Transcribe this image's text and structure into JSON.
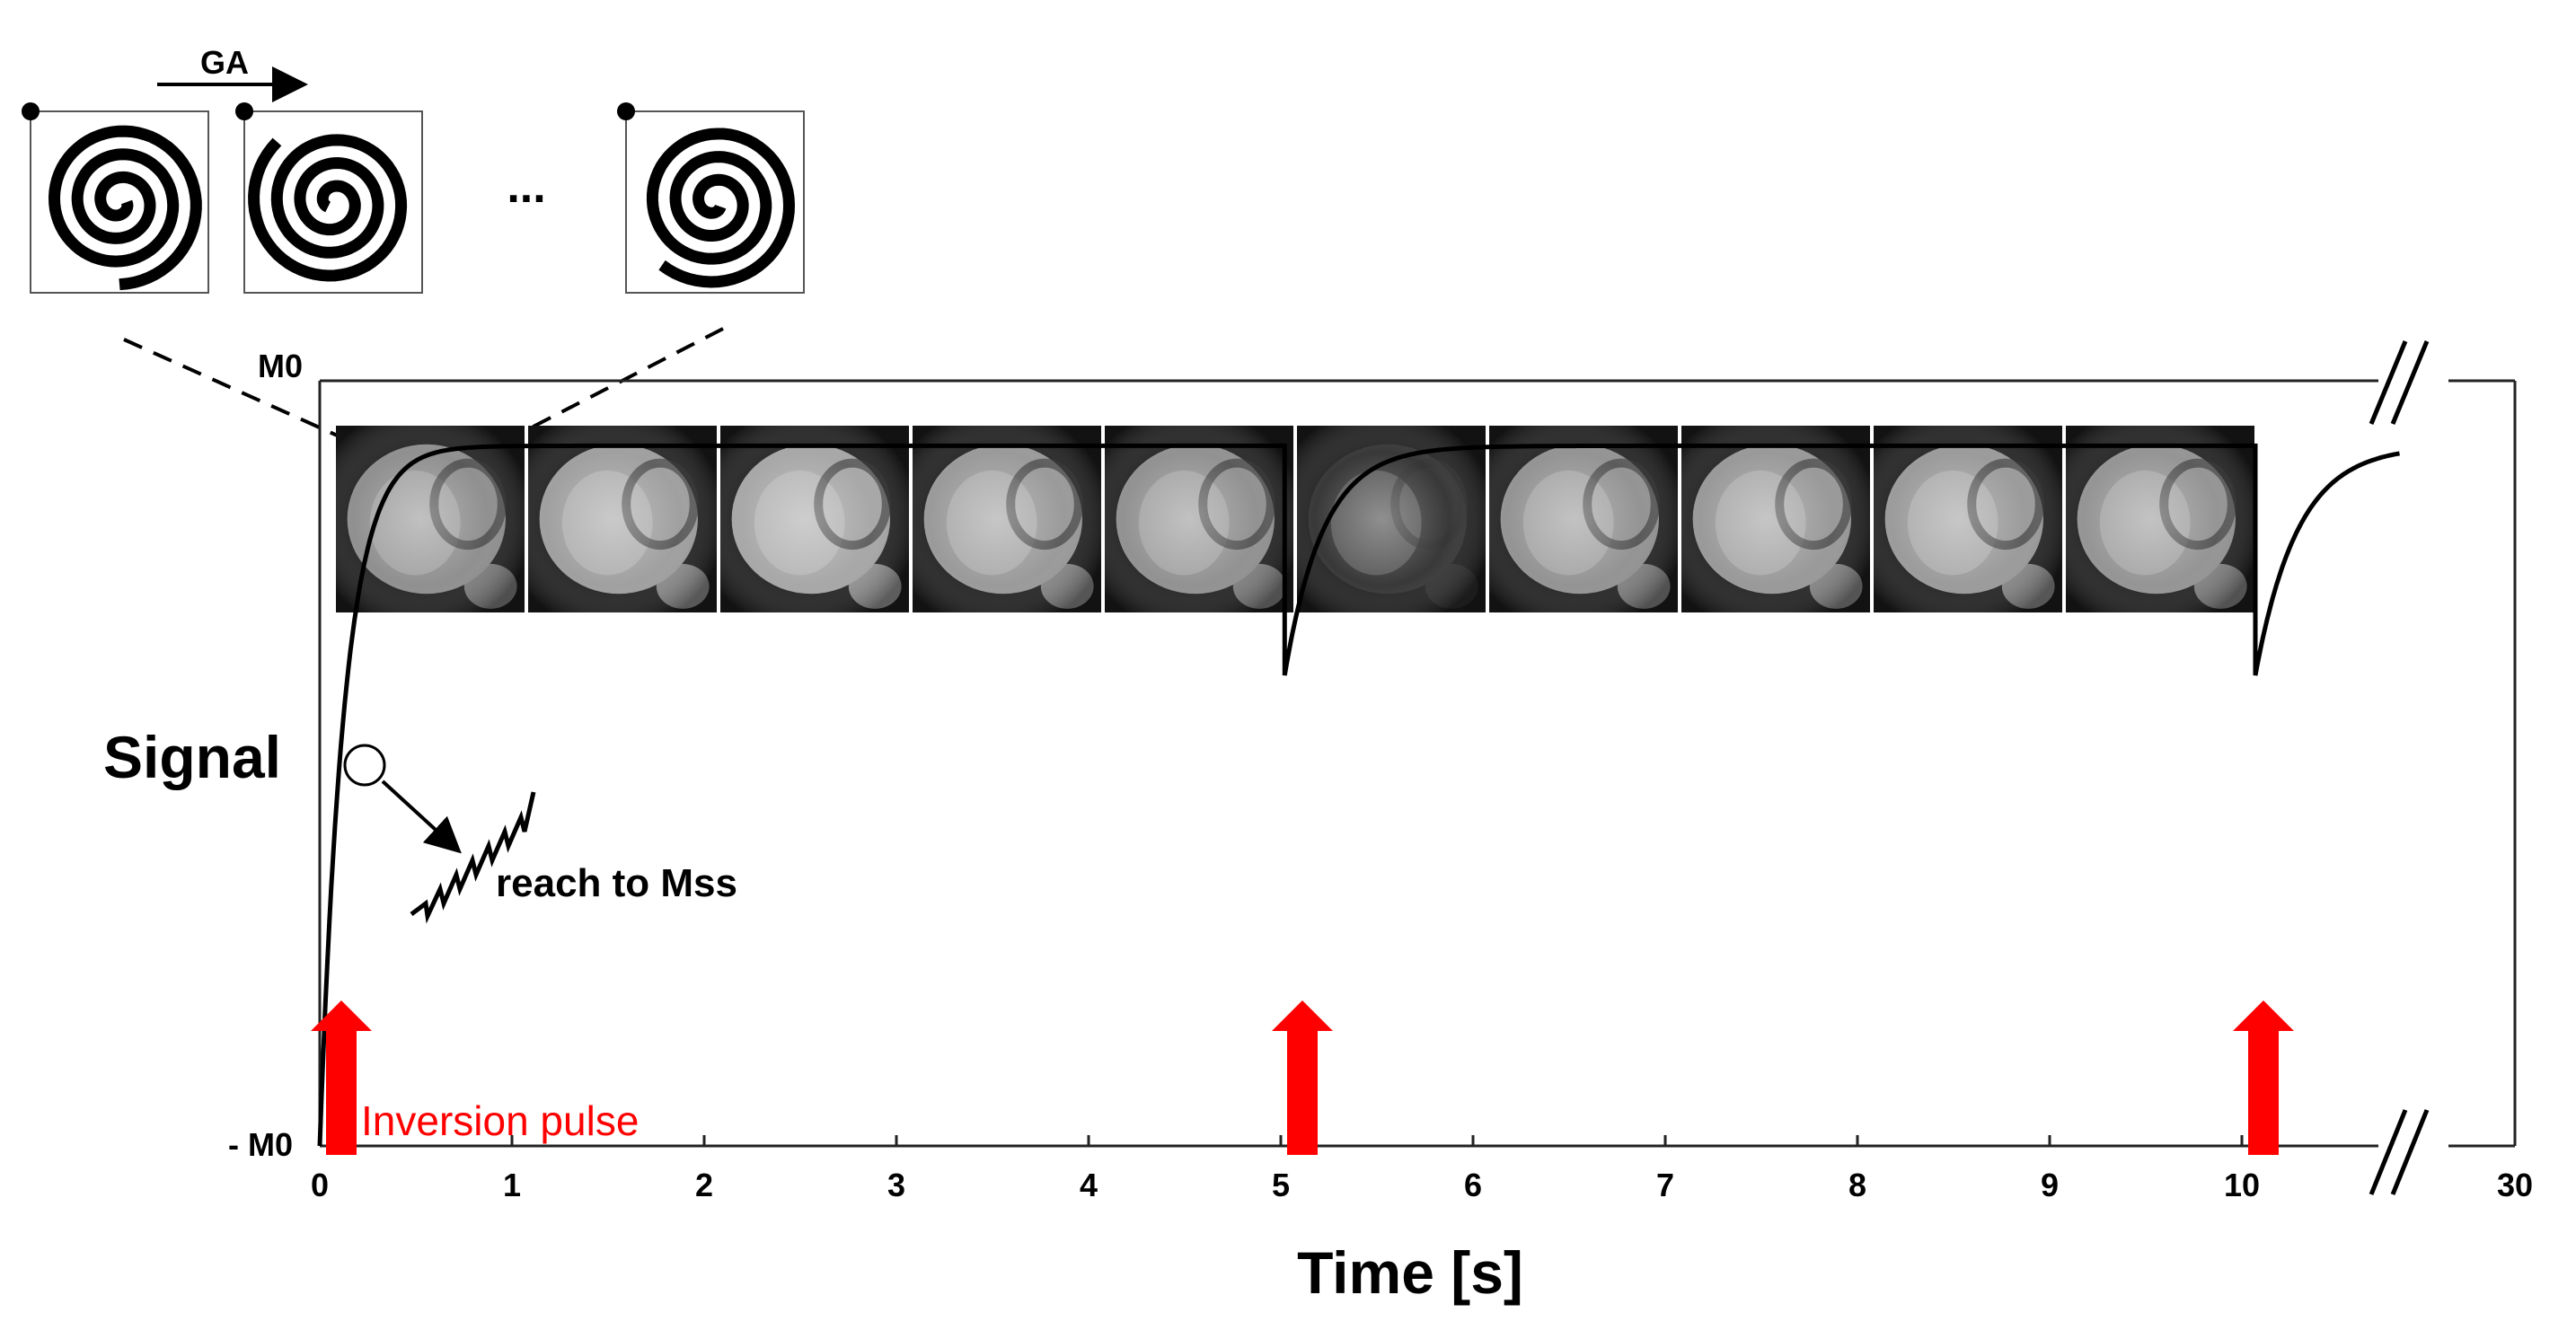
{
  "diagram": {
    "title": "",
    "top_labels": {
      "ga": "GA",
      "ellipsis": "..."
    },
    "axis": {
      "y_top": "M0",
      "y_bottom": "- M0",
      "ylabel": "Signal",
      "xlabel": "Time [s]",
      "xticks": [
        "0",
        "1",
        "2",
        "3",
        "4",
        "5",
        "6",
        "7",
        "8",
        "9",
        "10",
        "30"
      ],
      "break_marks": [
        "//",
        "//"
      ]
    },
    "annotations": {
      "reach_mss": "reach to Mss",
      "inversion_pulse": "Inversion pulse"
    },
    "spiral_frames": 3,
    "image_frames": [
      {
        "tone": "#8a8a8a"
      },
      {
        "tone": "#9b9b9b"
      },
      {
        "tone": "#a3a3a3"
      },
      {
        "tone": "#959595"
      },
      {
        "tone": "#8c8c8c"
      },
      {
        "tone": "#2e2e2e"
      },
      {
        "tone": "#8e8e8e"
      },
      {
        "tone": "#949494"
      },
      {
        "tone": "#969696"
      },
      {
        "tone": "#8f8f8f"
      }
    ],
    "colors": {
      "pulse": "#ff0000",
      "line": "#000000",
      "annotation": "#ff0000"
    }
  },
  "chart_data": {
    "type": "line",
    "title": "",
    "xlabel": "Time [s]",
    "ylabel": "Signal",
    "xticks": [
      "0",
      "1",
      "2",
      "3",
      "4",
      "5",
      "6",
      "7",
      "8",
      "9",
      "10",
      "30"
    ],
    "yticks": [
      "- M0",
      "M0"
    ],
    "series": [
      {
        "x": [
          0,
          0.1,
          0.2,
          0.3,
          0.5,
          0.8,
          1.2,
          2,
          4.9,
          5.05,
          5.2,
          5.5,
          6,
          7,
          10,
          10.1,
          10.3,
          10.6,
          11
        ],
        "y": [
          -1,
          -0.05,
          0.3,
          0.55,
          0.75,
          0.82,
          0.83,
          0.83,
          0.83,
          0.23,
          0.55,
          0.75,
          0.82,
          0.83,
          0.83,
          0.23,
          0.55,
          0.75,
          0.83
        ]
      }
    ],
    "inversion_pulses_at": [
      0,
      5,
      10
    ]
  }
}
